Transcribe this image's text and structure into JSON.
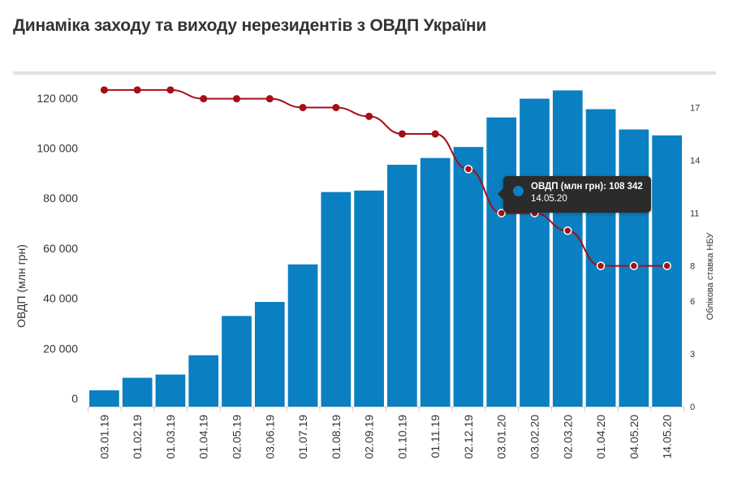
{
  "title": "Динаміка заходу та виходу нерезидентів з ОВДП України",
  "colors": {
    "bars": "#0a7fc2",
    "line": "#a50f15",
    "grid": "#e6e6e6",
    "text": "#333333"
  },
  "tooltip": {
    "series_label": "ОВДП (млн грн):",
    "value": "108 342",
    "date": "14.05.20"
  },
  "chart_data": {
    "type": "bar",
    "categories": [
      "03.01.19",
      "01.02.19",
      "01.03.19",
      "01.04.19",
      "02.05.19",
      "03.06.19",
      "01.07.19",
      "01.08.19",
      "02.09.19",
      "01.10.19",
      "01.11.19",
      "02.12.19",
      "03.01.20",
      "03.02.20",
      "02.03.20",
      "01.04.20",
      "04.05.20",
      "14.05.20"
    ],
    "series": [
      {
        "name": "ОВДП (млн грн)",
        "type": "bar",
        "axis": "left",
        "values": [
          6500,
          11500,
          12800,
          20500,
          36200,
          41800,
          56800,
          85700,
          86300,
          96600,
          99300,
          103700,
          115500,
          123000,
          126300,
          118800,
          110700,
          108342
        ]
      },
      {
        "name": "Облікова ставка НБУ",
        "type": "line",
        "axis": "right",
        "values": [
          18,
          18,
          18,
          17.5,
          17.5,
          17.5,
          17,
          17,
          16.5,
          15.5,
          15.5,
          13.5,
          11,
          11,
          10,
          8,
          8,
          8
        ]
      }
    ],
    "ylabel": "ОВДП (млн грн)",
    "ylabel_right": "Облікова ставка НБУ",
    "ylim": [
      0,
      130000
    ],
    "ylim_right": [
      0,
      18.5
    ],
    "yticks": [
      0,
      20000,
      40000,
      60000,
      80000,
      100000,
      120000
    ],
    "yticks_right": [
      0,
      3,
      6,
      8,
      11,
      14,
      17
    ],
    "grid": false,
    "legend": "none"
  }
}
